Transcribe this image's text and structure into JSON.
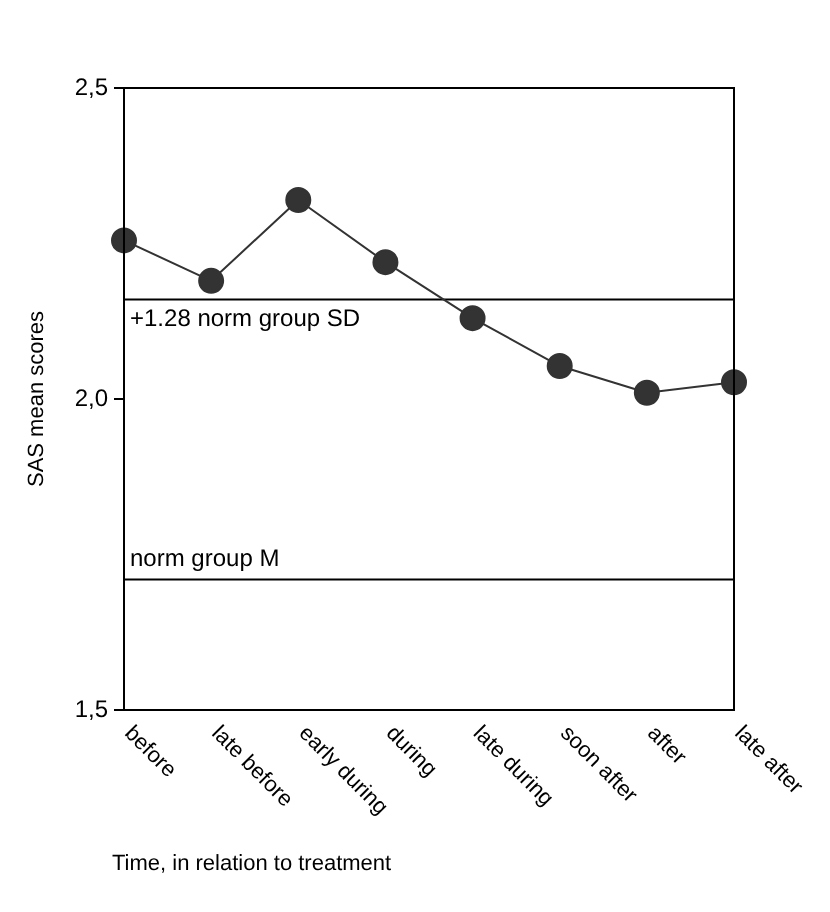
{
  "chart_data": {
    "type": "line",
    "xlabel": "Time, in relation to treatment",
    "ylabel": "SAS mean scores",
    "categories": [
      "before",
      "late before",
      "early during",
      "during",
      "late during",
      "soon after",
      "after",
      "late after"
    ],
    "series": [
      {
        "color": "#333333",
        "values": [
          2.255,
          2.19,
          2.32,
          2.22,
          2.13,
          2.053,
          2.01,
          2.027
        ]
      }
    ],
    "ylim": [
      1.5,
      2.5
    ],
    "yticks": [
      {
        "value": 1.5,
        "label": "1,5"
      },
      {
        "value": 2.0,
        "label": "2,0"
      },
      {
        "value": 2.5,
        "label": "2,5"
      }
    ],
    "ref_lines": [
      {
        "axis": "y",
        "value": 2.16,
        "label": "+1.28 norm group SD",
        "color": "#000000"
      },
      {
        "axis": "y",
        "value": 1.71,
        "label": "norm group M",
        "color": "#000000"
      }
    ],
    "grid": false,
    "legend": false,
    "marker": "circle",
    "line_style": "solid"
  }
}
